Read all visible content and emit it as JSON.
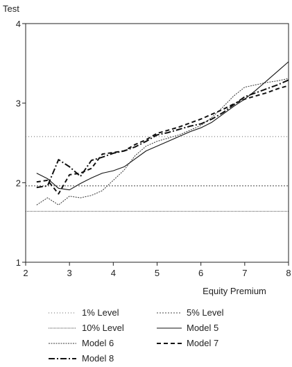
{
  "chart_data": {
    "type": "line",
    "title": "",
    "ylabel": "Test",
    "xlabel": "Equity Premium",
    "xlim": [
      2,
      8
    ],
    "ylim": [
      1,
      4
    ],
    "xticks": [
      "2",
      "3",
      "4",
      "5",
      "6",
      "7",
      "8"
    ],
    "yticks": [
      "1",
      "2",
      "3",
      "4"
    ],
    "grid": false,
    "legend_position": "bottom",
    "reference_lines": [
      {
        "name": "1% Level",
        "value": 2.58,
        "dash": "1,3",
        "color": "#666666"
      },
      {
        "name": "5% Level",
        "value": 1.96,
        "dash": "2,2",
        "color": "#444444"
      },
      {
        "name": "10% Level",
        "value": 1.64,
        "dash": "1,1",
        "color": "#444444"
      }
    ],
    "series": [
      {
        "name": "Model 5",
        "dash": "",
        "width": 1.1,
        "color": "#111111",
        "x": [
          2.25,
          2.5,
          2.75,
          3.0,
          3.25,
          3.5,
          3.75,
          4.0,
          4.25,
          4.5,
          4.75,
          5.0,
          5.25,
          5.5,
          5.75,
          6.0,
          6.25,
          6.5,
          6.75,
          7.0,
          7.25,
          7.5,
          7.75,
          8.0
        ],
        "y": [
          2.12,
          2.05,
          1.93,
          1.91,
          1.99,
          2.06,
          2.12,
          2.15,
          2.2,
          2.3,
          2.4,
          2.46,
          2.52,
          2.58,
          2.64,
          2.69,
          2.76,
          2.86,
          2.96,
          3.05,
          3.16,
          3.28,
          3.4,
          3.52
        ]
      },
      {
        "name": "Model 6",
        "dash": "2,1.5",
        "width": 1.0,
        "color": "#333333",
        "x": [
          2.25,
          2.5,
          2.75,
          3.0,
          3.25,
          3.5,
          3.75,
          4.0,
          4.25,
          4.5,
          4.75,
          5.0,
          5.25,
          5.5,
          5.75,
          6.0,
          6.25,
          6.5,
          6.75,
          7.0,
          7.25,
          7.5,
          7.75,
          8.0
        ],
        "y": [
          1.72,
          1.81,
          1.72,
          1.83,
          1.81,
          1.84,
          1.9,
          2.03,
          2.16,
          2.34,
          2.46,
          2.52,
          2.56,
          2.6,
          2.66,
          2.72,
          2.82,
          2.95,
          3.09,
          3.2,
          3.23,
          3.26,
          3.28,
          3.31
        ]
      },
      {
        "name": "Model 7",
        "dash": "6,4",
        "width": 2.0,
        "color": "#111111",
        "x": [
          2.25,
          2.5,
          2.75,
          3.0,
          3.25,
          3.5,
          3.75,
          4.0,
          4.25,
          4.5,
          4.75,
          5.0,
          5.25,
          5.5,
          5.75,
          6.0,
          6.25,
          6.5,
          6.75,
          7.0,
          7.25,
          7.5,
          7.75,
          8.0
        ],
        "y": [
          2.01,
          2.03,
          1.86,
          2.1,
          2.12,
          2.18,
          2.36,
          2.38,
          2.4,
          2.48,
          2.54,
          2.62,
          2.66,
          2.7,
          2.75,
          2.8,
          2.86,
          2.92,
          2.99,
          3.05,
          3.09,
          3.13,
          3.18,
          3.22
        ]
      },
      {
        "name": "Model 8",
        "dash": "9,3,2,3",
        "width": 2.0,
        "color": "#111111",
        "x": [
          2.25,
          2.5,
          2.75,
          3.0,
          3.25,
          3.5,
          3.75,
          4.0,
          4.25,
          4.5,
          4.75,
          5.0,
          5.25,
          5.5,
          5.75,
          6.0,
          6.25,
          6.5,
          6.75,
          7.0,
          7.25,
          7.5,
          7.75,
          8.0
        ],
        "y": [
          1.94,
          1.96,
          2.29,
          2.2,
          2.08,
          2.28,
          2.32,
          2.37,
          2.4,
          2.45,
          2.52,
          2.6,
          2.63,
          2.67,
          2.71,
          2.74,
          2.8,
          2.88,
          2.98,
          3.08,
          3.13,
          3.18,
          3.23,
          3.29
        ]
      }
    ],
    "legend": [
      {
        "label": "1% Level",
        "ref": "1% Level"
      },
      {
        "label": "5% Level",
        "ref": "5% Level"
      },
      {
        "label": "10% Level",
        "ref": "10% Level"
      },
      {
        "label": "Model 5",
        "ref": "Model 5"
      },
      {
        "label": "Model 6",
        "ref": "Model 6"
      },
      {
        "label": "Model 7",
        "ref": "Model 7"
      },
      {
        "label": "Model 8",
        "ref": "Model 8"
      }
    ]
  }
}
